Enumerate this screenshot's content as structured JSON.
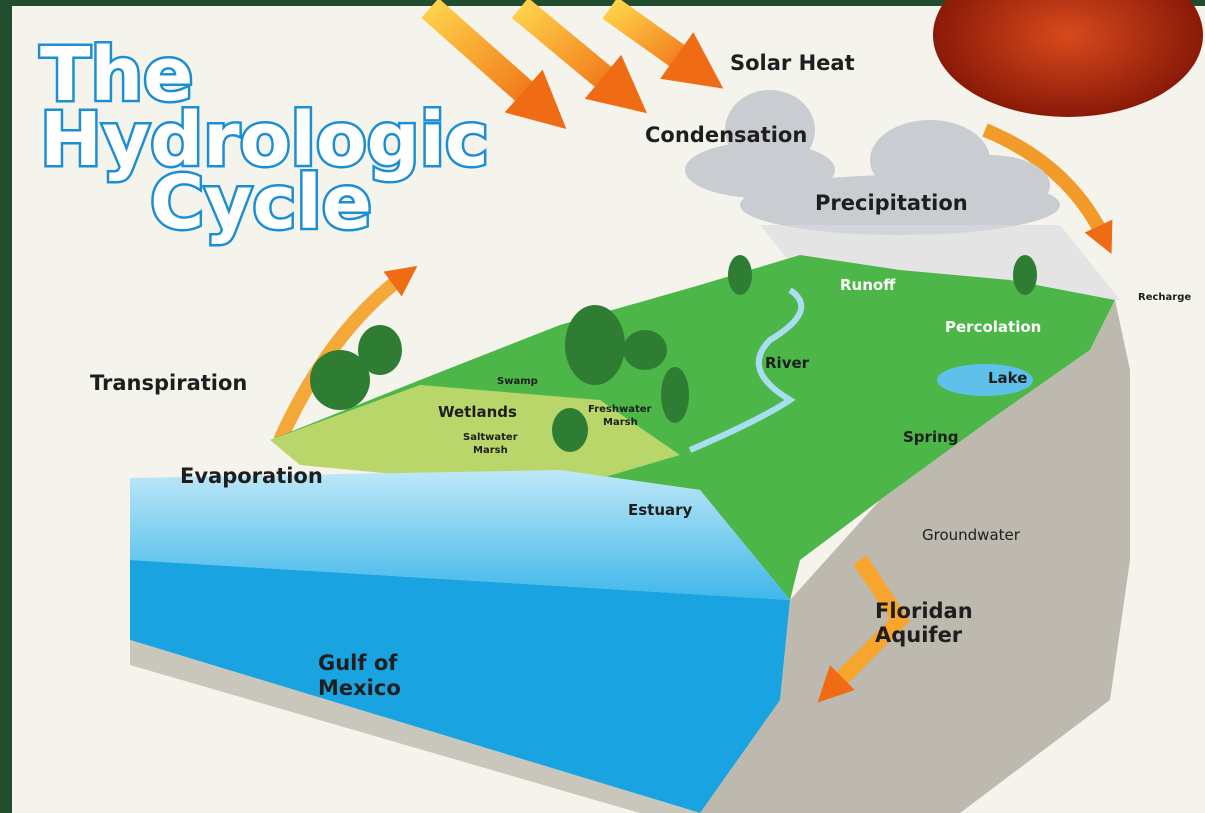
{
  "title": {
    "lines": [
      "The",
      "Hydrologic",
      "Cycle"
    ]
  },
  "labels": {
    "solar_heat": [
      "Solar Heat"
    ],
    "condensation": [
      "Condensation"
    ],
    "precipitation": [
      "Precipitation"
    ],
    "runoff": [
      "Runoff"
    ],
    "recharge": [
      "Recharge"
    ],
    "percolation": [
      "Percolation"
    ],
    "river": [
      "River"
    ],
    "lake": [
      "Lake"
    ],
    "swamp": [
      "Swamp"
    ],
    "freshwater_marsh": [
      "Freshwater",
      "Marsh"
    ],
    "wetlands": [
      "Wetlands"
    ],
    "saltwater_marsh": [
      "Saltwater",
      "Marsh"
    ],
    "transpiration": [
      "Transpiration"
    ],
    "evaporation": [
      "Evaporation"
    ],
    "spring": [
      "Spring"
    ],
    "estuary": [
      "Estuary"
    ],
    "groundwater": [
      "Groundwater"
    ],
    "floridan_aquifer": [
      "Floridan",
      "Aquifer"
    ],
    "gulf_of_mexico": [
      "Gulf of",
      "Mexico"
    ]
  }
}
